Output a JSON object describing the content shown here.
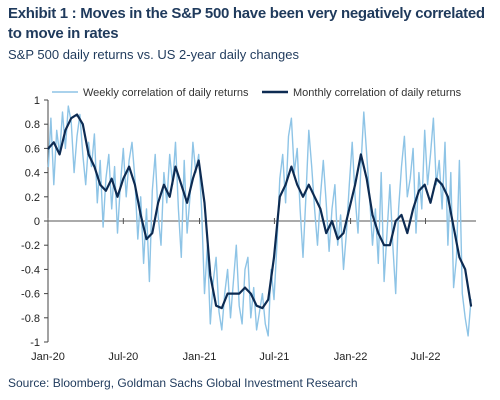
{
  "header": {
    "title": "Exhibit 1 : Moves in the S&P 500 have been very negatively correlated to move in rates",
    "subtitle": "S&P 500 daily returns vs. US 2-year daily changes"
  },
  "footer": {
    "source": "Source: Bloomberg, Goldman Sachs Global Investment Research"
  },
  "colors": {
    "weekly": "#8ec4e6",
    "monthly": "#0d2b52"
  },
  "chart_data": {
    "type": "line",
    "ylim": [
      -1,
      1
    ],
    "yticks": [
      1,
      0.8,
      0.6,
      0.4,
      0.2,
      0,
      -0.2,
      -0.4,
      -0.6,
      -0.8,
      -1
    ],
    "ytick_labels": [
      "1",
      "0.8",
      "0.6",
      "0.4",
      "0.2",
      "0",
      "-0.2",
      "-0.4",
      "-0.6",
      "-0.8",
      "-1"
    ],
    "xlim": [
      "2020-01-01",
      "2022-10-31"
    ],
    "xticks": [
      "2020-01-01",
      "2020-07-01",
      "2021-01-01",
      "2021-07-01",
      "2022-01-01",
      "2022-07-01"
    ],
    "xtick_labels": [
      "Jan-20",
      "Jul-20",
      "Jan-21",
      "Jul-21",
      "Jan-22",
      "Jul-22"
    ],
    "legend_position": "top",
    "series": [
      {
        "name": "Weekly correlation of daily returns",
        "style": "light",
        "x": [
          "2020-01-02",
          "2020-01-08",
          "2020-01-15",
          "2020-01-22",
          "2020-01-29",
          "2020-02-05",
          "2020-02-12",
          "2020-02-19",
          "2020-02-26",
          "2020-03-04",
          "2020-03-11",
          "2020-03-18",
          "2020-03-25",
          "2020-04-01",
          "2020-04-08",
          "2020-04-15",
          "2020-04-22",
          "2020-04-29",
          "2020-05-06",
          "2020-05-13",
          "2020-05-20",
          "2020-05-27",
          "2020-06-03",
          "2020-06-10",
          "2020-06-17",
          "2020-06-24",
          "2020-07-01",
          "2020-07-08",
          "2020-07-15",
          "2020-07-22",
          "2020-07-29",
          "2020-08-05",
          "2020-08-12",
          "2020-08-19",
          "2020-08-26",
          "2020-09-02",
          "2020-09-09",
          "2020-09-16",
          "2020-09-23",
          "2020-09-30",
          "2020-10-07",
          "2020-10-14",
          "2020-10-21",
          "2020-10-28",
          "2020-11-04",
          "2020-11-11",
          "2020-11-18",
          "2020-11-25",
          "2020-12-02",
          "2020-12-09",
          "2020-12-16",
          "2020-12-23",
          "2020-12-30",
          "2021-01-06",
          "2021-01-13",
          "2021-01-20",
          "2021-01-27",
          "2021-02-03",
          "2021-02-10",
          "2021-02-17",
          "2021-02-24",
          "2021-03-03",
          "2021-03-10",
          "2021-03-17",
          "2021-03-24",
          "2021-03-31",
          "2021-04-07",
          "2021-04-14",
          "2021-04-21",
          "2021-04-28",
          "2021-05-05",
          "2021-05-12",
          "2021-05-19",
          "2021-05-26",
          "2021-06-02",
          "2021-06-09",
          "2021-06-16",
          "2021-06-23",
          "2021-06-30",
          "2021-07-07",
          "2021-07-14",
          "2021-07-21",
          "2021-07-28",
          "2021-08-04",
          "2021-08-11",
          "2021-08-18",
          "2021-08-25",
          "2021-09-01",
          "2021-09-08",
          "2021-09-15",
          "2021-09-22",
          "2021-09-29",
          "2021-10-06",
          "2021-10-13",
          "2021-10-20",
          "2021-10-27",
          "2021-11-03",
          "2021-11-10",
          "2021-11-17",
          "2021-11-24",
          "2021-12-01",
          "2021-12-08",
          "2021-12-15",
          "2021-12-22",
          "2021-12-29",
          "2022-01-05",
          "2022-01-12",
          "2022-01-19",
          "2022-01-26",
          "2022-02-02",
          "2022-02-09",
          "2022-02-16",
          "2022-02-23",
          "2022-03-02",
          "2022-03-09",
          "2022-03-16",
          "2022-03-23",
          "2022-03-30",
          "2022-04-06",
          "2022-04-13",
          "2022-04-20",
          "2022-04-27",
          "2022-05-04",
          "2022-05-11",
          "2022-05-18",
          "2022-05-25",
          "2022-06-01",
          "2022-06-08",
          "2022-06-15",
          "2022-06-22",
          "2022-06-29",
          "2022-07-06",
          "2022-07-13",
          "2022-07-20",
          "2022-07-27",
          "2022-08-03",
          "2022-08-10",
          "2022-08-17",
          "2022-08-24",
          "2022-08-31",
          "2022-09-07",
          "2022-09-14",
          "2022-09-21",
          "2022-09-28",
          "2022-10-05",
          "2022-10-12",
          "2022-10-19"
        ],
        "y": [
          0.45,
          0.85,
          0.3,
          0.75,
          0.55,
          0.9,
          0.6,
          0.95,
          0.82,
          0.4,
          0.7,
          0.88,
          0.55,
          0.3,
          0.65,
          0.45,
          0.72,
          0.15,
          0.5,
          -0.05,
          0.35,
          0.55,
          0.1,
          0.45,
          -0.1,
          0.3,
          0.6,
          0.2,
          0.5,
          0.65,
          0.35,
          -0.15,
          0.2,
          -0.35,
          0.1,
          -0.5,
          0.25,
          0.55,
          0.05,
          -0.2,
          0.4,
          0.15,
          0.55,
          0.3,
          0.65,
          0.1,
          -0.3,
          0.5,
          -0.1,
          0.2,
          0.65,
          0.4,
          0.55,
          0.1,
          -0.6,
          -0.2,
          -0.85,
          -0.5,
          -0.3,
          -0.75,
          -0.9,
          -0.6,
          -0.4,
          -0.8,
          -0.5,
          -0.2,
          -0.7,
          -0.85,
          -0.4,
          -0.3,
          -0.8,
          -0.55,
          -0.9,
          -0.75,
          -0.6,
          -0.85,
          -0.95,
          -0.4,
          -0.65,
          -0.2,
          0.35,
          0.55,
          0.15,
          0.7,
          0.85,
          0.4,
          0.6,
          0.1,
          -0.3,
          0.2,
          0.75,
          0.45,
          0.1,
          -0.2,
          0.2,
          0.5,
          0.15,
          -0.25,
          0.1,
          0.3,
          -0.2,
          0.05,
          -0.4,
          -0.1,
          0.3,
          0.65,
          0.2,
          -0.1,
          0.45,
          0.9,
          0.55,
          0.2,
          -0.2,
          0.1,
          -0.35,
          0.4,
          -0.5,
          -0.1,
          0.3,
          -0.2,
          -0.6,
          0.1,
          0.45,
          0.7,
          0.2,
          0.35,
          0.6,
          -0.1,
          0.4,
          0.1,
          0.75,
          0.3,
          0.55,
          0.85,
          0.3,
          0.5,
          0.1,
          0.65,
          -0.2,
          0.4,
          -0.55,
          -0.3,
          0.5,
          -0.6,
          -0.8,
          -0.95,
          -0.65
        ]
      },
      {
        "name": "Monthly correlation of daily returns",
        "style": "dark",
        "x": [
          "2020-01-02",
          "2020-01-15",
          "2020-01-29",
          "2020-02-12",
          "2020-02-26",
          "2020-03-11",
          "2020-03-25",
          "2020-04-08",
          "2020-04-22",
          "2020-05-06",
          "2020-05-20",
          "2020-06-03",
          "2020-06-17",
          "2020-07-01",
          "2020-07-15",
          "2020-07-29",
          "2020-08-12",
          "2020-08-26",
          "2020-09-09",
          "2020-09-23",
          "2020-10-07",
          "2020-10-21",
          "2020-11-04",
          "2020-11-18",
          "2020-12-02",
          "2020-12-16",
          "2020-12-30",
          "2021-01-13",
          "2021-01-27",
          "2021-02-10",
          "2021-02-24",
          "2021-03-10",
          "2021-03-24",
          "2021-04-07",
          "2021-04-21",
          "2021-05-05",
          "2021-05-19",
          "2021-06-02",
          "2021-06-16",
          "2021-06-30",
          "2021-07-14",
          "2021-07-28",
          "2021-08-11",
          "2021-08-25",
          "2021-09-08",
          "2021-09-22",
          "2021-10-06",
          "2021-10-20",
          "2021-11-03",
          "2021-11-17",
          "2021-12-01",
          "2021-12-15",
          "2021-12-29",
          "2022-01-12",
          "2022-01-26",
          "2022-02-09",
          "2022-02-23",
          "2022-03-09",
          "2022-03-23",
          "2022-04-06",
          "2022-04-20",
          "2022-05-04",
          "2022-05-18",
          "2022-06-01",
          "2022-06-15",
          "2022-06-29",
          "2022-07-13",
          "2022-07-27",
          "2022-08-10",
          "2022-08-24",
          "2022-09-07",
          "2022-09-21",
          "2022-10-05",
          "2022-10-19"
        ],
        "y": [
          0.6,
          0.65,
          0.55,
          0.75,
          0.85,
          0.88,
          0.8,
          0.55,
          0.45,
          0.3,
          0.25,
          0.35,
          0.2,
          0.35,
          0.45,
          0.3,
          0.05,
          -0.15,
          -0.1,
          0.15,
          0.3,
          0.2,
          0.45,
          0.3,
          0.15,
          0.35,
          0.5,
          0.15,
          -0.45,
          -0.7,
          -0.72,
          -0.6,
          -0.6,
          -0.6,
          -0.55,
          -0.6,
          -0.7,
          -0.72,
          -0.65,
          -0.3,
          0.2,
          0.3,
          0.45,
          0.3,
          0.2,
          0.3,
          0.2,
          0.1,
          -0.1,
          0.0,
          -0.15,
          -0.1,
          0.1,
          0.3,
          0.55,
          0.35,
          0.05,
          -0.1,
          -0.2,
          -0.2,
          0.0,
          0.05,
          -0.1,
          0.1,
          0.25,
          0.3,
          0.15,
          0.35,
          0.3,
          0.2,
          -0.05,
          -0.3,
          -0.4,
          -0.7
        ]
      }
    ]
  }
}
